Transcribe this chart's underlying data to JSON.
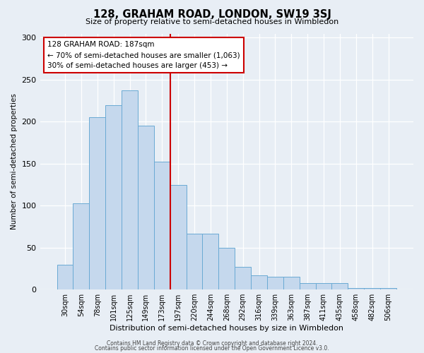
{
  "title": "128, GRAHAM ROAD, LONDON, SW19 3SJ",
  "subtitle": "Size of property relative to semi-detached houses in Wimbledon",
  "xlabel": "Distribution of semi-detached houses by size in Wimbledon",
  "ylabel": "Number of semi-detached properties",
  "bin_labels": [
    "30sqm",
    "54sqm",
    "78sqm",
    "101sqm",
    "125sqm",
    "149sqm",
    "173sqm",
    "197sqm",
    "220sqm",
    "244sqm",
    "268sqm",
    "292sqm",
    "316sqm",
    "339sqm",
    "363sqm",
    "387sqm",
    "411sqm",
    "435sqm",
    "458sqm",
    "482sqm",
    "506sqm"
  ],
  "bar_values": [
    30,
    103,
    205,
    220,
    237,
    195,
    152,
    125,
    67,
    67,
    50,
    27,
    17,
    15,
    15,
    8,
    8,
    8,
    2,
    2,
    2
  ],
  "bar_color": "#c5d8ed",
  "bar_edge_color": "#6aaad4",
  "vline_x_index": 7,
  "vline_color": "#cc0000",
  "annotation_title": "128 GRAHAM ROAD: 187sqm",
  "annotation_line1": "← 70% of semi-detached houses are smaller (1,063)",
  "annotation_line2": "30% of semi-detached houses are larger (453) →",
  "annotation_box_color": "#ffffff",
  "annotation_box_edge": "#cc0000",
  "ylim": [
    0,
    305
  ],
  "yticks": [
    0,
    50,
    100,
    150,
    200,
    250,
    300
  ],
  "footer1": "Contains HM Land Registry data © Crown copyright and database right 2024.",
  "footer2": "Contains public sector information licensed under the Open Government Licence v3.0.",
  "background_color": "#e8eef5",
  "plot_background": "#e8eef5"
}
